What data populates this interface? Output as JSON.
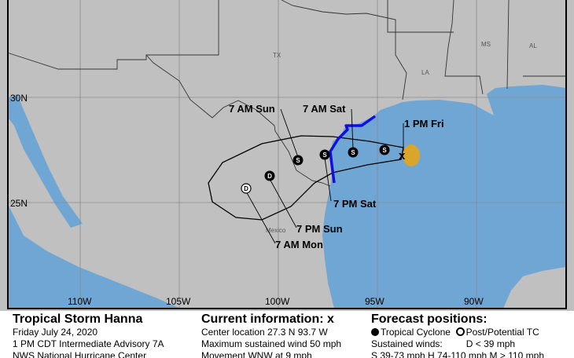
{
  "colors": {
    "land": "#c0c0c0",
    "water": "#6fa6d3",
    "cone_land": "#f2f2f2",
    "cone_water": "#dde9f4",
    "warning": "#1010dd",
    "current_wind": "#d9a52b"
  },
  "map": {
    "lat_labels": [
      "30N",
      "25N"
    ],
    "lon_labels": [
      "110W",
      "105W",
      "100W",
      "95W",
      "90W"
    ],
    "states": [
      "TX",
      "LA",
      "MS",
      "AL"
    ],
    "country": "Mexico",
    "positions": [
      {
        "time": "1 PM Fri",
        "marker": "x",
        "type": "current"
      },
      {
        "time": "",
        "marker": "S",
        "type": "tropical-cyclone"
      },
      {
        "time": "7 AM Sat",
        "marker": "S",
        "type": "tropical-cyclone"
      },
      {
        "time": "7 PM Sat",
        "marker": "S",
        "type": "tropical-cyclone"
      },
      {
        "time": "7 AM Sun",
        "marker": "S",
        "type": "tropical-cyclone"
      },
      {
        "time": "7 PM Sun",
        "marker": "D",
        "type": "tropical-cyclone"
      },
      {
        "time": "7 AM Mon",
        "marker": "D",
        "type": "post-potential"
      }
    ]
  },
  "panel": {
    "storm": {
      "title": "Tropical Storm Hanna",
      "date": "Friday July 24, 2020",
      "advisory": "1 PM CDT Intermediate Advisory 7A",
      "source": "NWS National Hurricane Center"
    },
    "current": {
      "title": "Current information:",
      "marker": "x",
      "location": "Center location 27.3 N 93.7 W",
      "wind": "Maximum sustained wind 50 mph",
      "movement": "Movement WNW at 9 mph"
    },
    "forecast": {
      "title": "Forecast positions:",
      "tc": "Tropical Cyclone",
      "ptc": "Post/Potential TC",
      "winds_label": "Sustained winds:",
      "d": "D < 39 mph",
      "categories": "S 39-73 mph  H 74-110 mph  M > 110 mph"
    }
  }
}
